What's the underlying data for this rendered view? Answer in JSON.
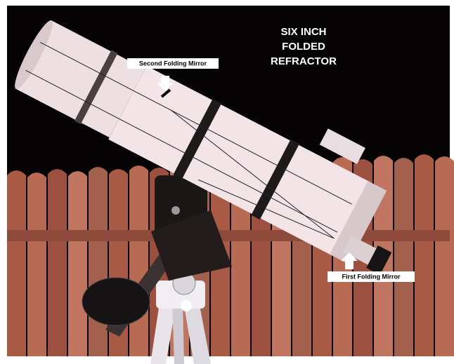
{
  "title_lines": [
    "SIX INCH",
    "FOLDED",
    "REFRACTOR"
  ],
  "labels": {
    "second_mirror": "Second Folding Mirror",
    "first_mirror": "First Folding Mirror"
  }
}
